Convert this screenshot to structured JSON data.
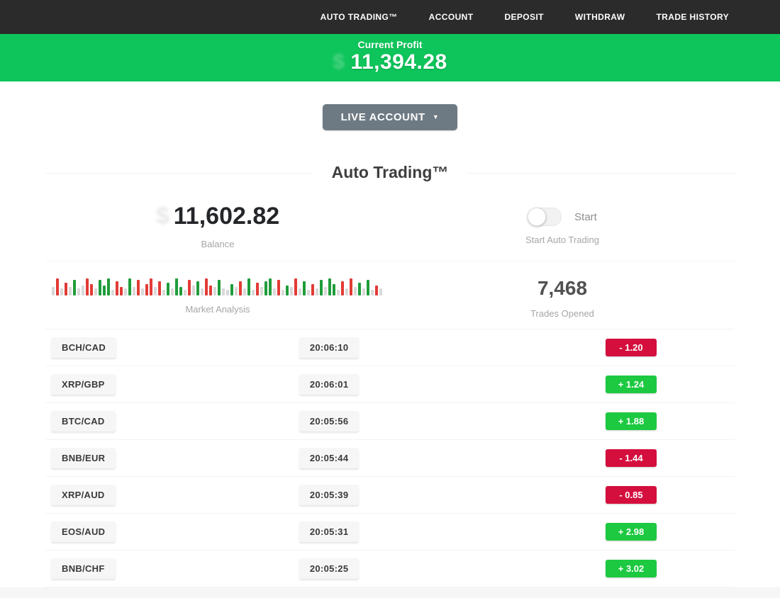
{
  "nav": {
    "items": [
      {
        "label": "AUTO TRADING™"
      },
      {
        "label": "ACCOUNT"
      },
      {
        "label": "DEPOSIT"
      },
      {
        "label": "WITHDRAW"
      },
      {
        "label": "TRADE HISTORY"
      }
    ]
  },
  "profit_banner": {
    "label": "Current Profit",
    "value": "11,394.28",
    "ghost_symbol": "$",
    "bg_color": "#0dc55a"
  },
  "account_selector": {
    "label": "LIVE ACCOUNT",
    "caret": "▼"
  },
  "section": {
    "title": "Auto Trading™"
  },
  "stats": {
    "balance": {
      "value": "11,602.82",
      "ghost_symbol": "$",
      "label": "Balance"
    },
    "auto_trading": {
      "toggle_state": "off",
      "toggle_label": "Start",
      "label": "Start Auto Trading"
    },
    "market_analysis": {
      "label": "Market Analysis"
    },
    "trades_opened": {
      "value": "7,468",
      "label": "Trades Opened"
    }
  },
  "chart_data": {
    "type": "bar",
    "title": "Market Analysis",
    "note": "decorative mini volume/candle bars; c = color key (n neutral gray, r red, g green), h = bar height px (baseline-aligned, max 28)",
    "bar_colors": {
      "n": "#d9d9d9",
      "r": "#e23b35",
      "g": "#1f9c3a"
    },
    "bars": [
      [
        "n",
        12
      ],
      [
        "r",
        24
      ],
      [
        "n",
        10
      ],
      [
        "r",
        18
      ],
      [
        "n",
        12
      ],
      [
        "g",
        22
      ],
      [
        "n",
        10
      ],
      [
        "n",
        14
      ],
      [
        "r",
        24
      ],
      [
        "r",
        16
      ],
      [
        "n",
        10
      ],
      [
        "g",
        22
      ],
      [
        "g",
        14
      ],
      [
        "g",
        24
      ],
      [
        "n",
        8
      ],
      [
        "r",
        20
      ],
      [
        "r",
        12
      ],
      [
        "n",
        10
      ],
      [
        "g",
        24
      ],
      [
        "n",
        12
      ],
      [
        "r",
        22
      ],
      [
        "n",
        10
      ],
      [
        "r",
        16
      ],
      [
        "r",
        24
      ],
      [
        "n",
        12
      ],
      [
        "r",
        20
      ],
      [
        "n",
        8
      ],
      [
        "g",
        18
      ],
      [
        "n",
        10
      ],
      [
        "g",
        24
      ],
      [
        "g",
        12
      ],
      [
        "n",
        8
      ],
      [
        "r",
        22
      ],
      [
        "n",
        14
      ],
      [
        "g",
        20
      ],
      [
        "n",
        10
      ],
      [
        "r",
        24
      ],
      [
        "r",
        14
      ],
      [
        "n",
        12
      ],
      [
        "g",
        22
      ],
      [
        "n",
        10
      ],
      [
        "n",
        8
      ],
      [
        "g",
        16
      ],
      [
        "n",
        12
      ],
      [
        "r",
        20
      ],
      [
        "n",
        10
      ],
      [
        "g",
        24
      ],
      [
        "n",
        8
      ],
      [
        "r",
        18
      ],
      [
        "n",
        12
      ],
      [
        "g",
        20
      ],
      [
        "g",
        24
      ],
      [
        "n",
        10
      ],
      [
        "r",
        22
      ],
      [
        "n",
        8
      ],
      [
        "g",
        14
      ],
      [
        "n",
        12
      ],
      [
        "r",
        24
      ],
      [
        "n",
        10
      ],
      [
        "g",
        20
      ],
      [
        "n",
        8
      ],
      [
        "r",
        16
      ],
      [
        "n",
        10
      ],
      [
        "g",
        22
      ],
      [
        "n",
        12
      ],
      [
        "g",
        24
      ],
      [
        "g",
        16
      ],
      [
        "n",
        8
      ],
      [
        "r",
        20
      ],
      [
        "n",
        10
      ],
      [
        "r",
        24
      ],
      [
        "n",
        12
      ],
      [
        "g",
        18
      ],
      [
        "n",
        10
      ],
      [
        "g",
        22
      ],
      [
        "n",
        8
      ],
      [
        "r",
        14
      ],
      [
        "n",
        10
      ]
    ]
  },
  "trades": [
    {
      "pair": "BCH/CAD",
      "time": "20:06:10",
      "change": "-  1.20",
      "direction": "down"
    },
    {
      "pair": "XRP/GBP",
      "time": "20:06:01",
      "change": "+  1.24",
      "direction": "up"
    },
    {
      "pair": "BTC/CAD",
      "time": "20:05:56",
      "change": "+  1.88",
      "direction": "up"
    },
    {
      "pair": "BNB/EUR",
      "time": "20:05:44",
      "change": "-  1.44",
      "direction": "down"
    },
    {
      "pair": "XRP/AUD",
      "time": "20:05:39",
      "change": "-  0.85",
      "direction": "down"
    },
    {
      "pair": "EOS/AUD",
      "time": "20:05:31",
      "change": "+  2.98",
      "direction": "up"
    },
    {
      "pair": "BNB/CHF",
      "time": "20:05:25",
      "change": "+  3.02",
      "direction": "up"
    }
  ],
  "colors": {
    "positive_badge": "#1cc940",
    "negative_badge": "#d40f3e",
    "banner_green": "#0dc55a",
    "navbar_bg": "#2b2b2b"
  }
}
